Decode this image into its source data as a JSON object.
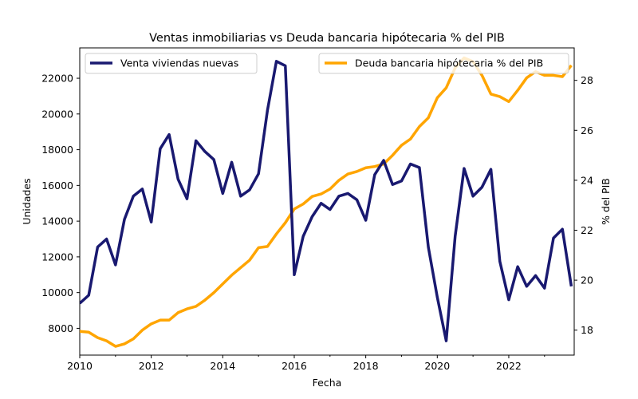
{
  "chart_data": {
    "type": "line",
    "title": "Ventas inmobiliarias vs Deuda bancaria hipótecaria % del PIB",
    "xlabel": "Fecha",
    "ylabel_left": "Unidades",
    "ylabel_right": "% del PIB",
    "xlim": [
      2010.0,
      2023.83
    ],
    "ylim_left": [
      6500,
      23700
    ],
    "ylim_right": [
      17.0,
      29.3
    ],
    "x_ticks": [
      "2010",
      "2012",
      "2014",
      "2016",
      "2018",
      "2020",
      "2022"
    ],
    "y_ticks_left": [
      "8000",
      "10000",
      "12000",
      "14000",
      "16000",
      "18000",
      "20000",
      "22000"
    ],
    "y_ticks_right": [
      "18",
      "20",
      "22",
      "24",
      "26",
      "28"
    ],
    "grid": false,
    "series": [
      {
        "name": "Venta viviendas nuevas",
        "axis": "left",
        "color": "#191970",
        "legend_position": "upper left",
        "x": [
          2010.0,
          2010.25,
          2010.5,
          2010.75,
          2011.0,
          2011.25,
          2011.5,
          2011.75,
          2012.0,
          2012.25,
          2012.5,
          2012.75,
          2013.0,
          2013.25,
          2013.5,
          2013.75,
          2014.0,
          2014.25,
          2014.5,
          2014.75,
          2015.0,
          2015.25,
          2015.5,
          2015.75,
          2016.0,
          2016.25,
          2016.5,
          2016.75,
          2017.0,
          2017.25,
          2017.5,
          2017.75,
          2018.0,
          2018.25,
          2018.5,
          2018.75,
          2019.0,
          2019.25,
          2019.5,
          2019.75,
          2020.0,
          2020.25,
          2020.5,
          2020.75,
          2021.0,
          2021.25,
          2021.5,
          2021.75,
          2022.0,
          2022.25,
          2022.5,
          2022.75,
          2023.0,
          2023.25,
          2023.5,
          2023.75
        ],
        "values": [
          9400,
          9850,
          12550,
          13000,
          11550,
          14100,
          15400,
          15800,
          13950,
          18050,
          18850,
          16350,
          15250,
          18500,
          17900,
          17450,
          15550,
          17300,
          15400,
          15750,
          16650,
          20200,
          22950,
          22700,
          11000,
          13150,
          14250,
          15000,
          14650,
          15400,
          15550,
          15200,
          14050,
          16600,
          17400,
          16050,
          16250,
          17200,
          17000,
          12550,
          9750,
          7300,
          13150,
          16950,
          15400,
          15900,
          16900,
          11750,
          9600,
          11450,
          10350,
          10950,
          10250,
          13050,
          13550,
          10350
        ]
      },
      {
        "name": "Deuda bancaria hipótecaria % del PIB",
        "axis": "right",
        "color": "#FFA500",
        "legend_position": "upper right",
        "x": [
          2010.0,
          2010.25,
          2010.5,
          2010.75,
          2011.0,
          2011.25,
          2011.5,
          2011.75,
          2012.0,
          2012.25,
          2012.5,
          2012.75,
          2013.0,
          2013.25,
          2013.5,
          2013.75,
          2014.0,
          2014.25,
          2014.5,
          2014.75,
          2015.0,
          2015.25,
          2015.5,
          2015.75,
          2016.0,
          2016.25,
          2016.5,
          2016.75,
          2017.0,
          2017.25,
          2017.5,
          2017.75,
          2018.0,
          2018.25,
          2018.5,
          2018.75,
          2019.0,
          2019.25,
          2019.5,
          2019.75,
          2020.0,
          2020.25,
          2020.5,
          2020.75,
          2021.0,
          2021.25,
          2021.5,
          2021.75,
          2022.0,
          2022.25,
          2022.5,
          2022.75,
          2023.0,
          2023.25,
          2023.5,
          2023.75
        ],
        "values": [
          17.95,
          17.92,
          17.7,
          17.57,
          17.35,
          17.45,
          17.65,
          18.0,
          18.25,
          18.4,
          18.4,
          18.7,
          18.85,
          18.95,
          19.2,
          19.5,
          19.85,
          20.2,
          20.5,
          20.8,
          21.3,
          21.35,
          21.85,
          22.3,
          22.85,
          23.05,
          23.35,
          23.45,
          23.65,
          24.0,
          24.25,
          24.35,
          24.5,
          24.55,
          24.65,
          25.0,
          25.4,
          25.65,
          26.15,
          26.5,
          27.3,
          27.7,
          28.5,
          28.9,
          28.75,
          28.2,
          27.45,
          27.35,
          27.15,
          27.6,
          28.1,
          28.35,
          28.2,
          28.2,
          28.15,
          28.6
        ]
      }
    ]
  }
}
